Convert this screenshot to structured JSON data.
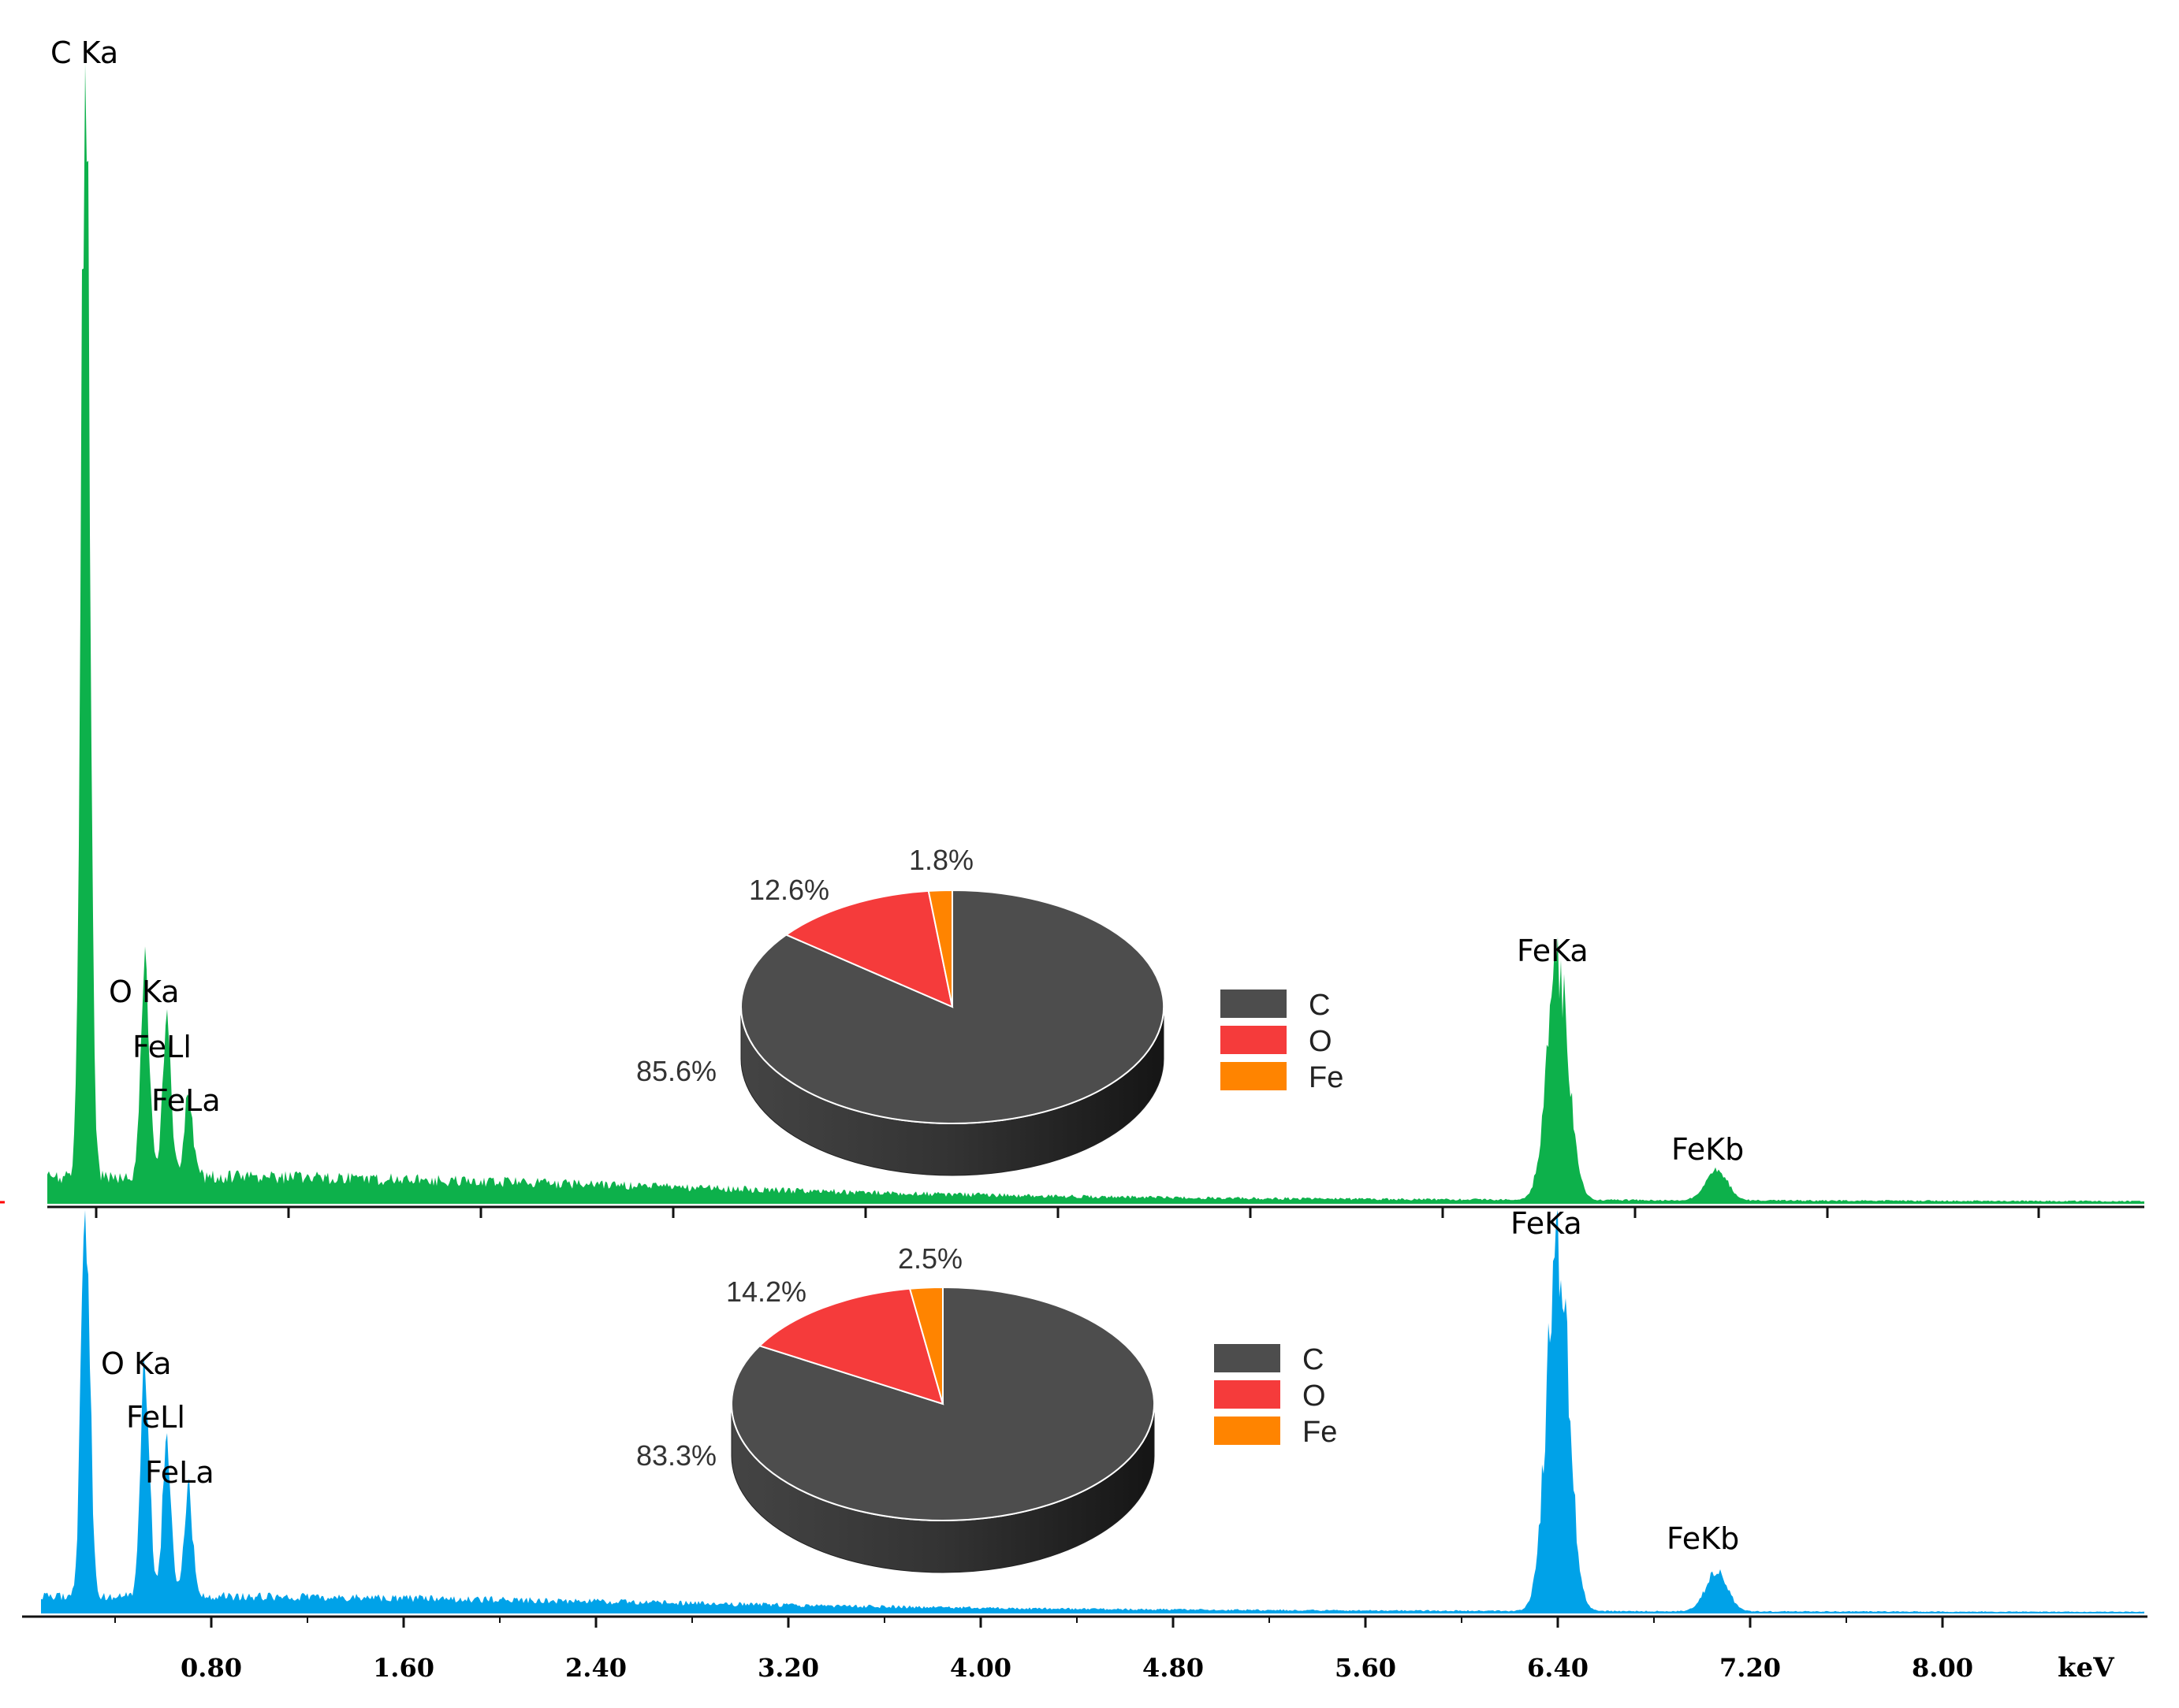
{
  "colors": {
    "top_spectrum": "#0db14b",
    "bottom_spectrum": "#00a2e8",
    "C": "#4d4d4d",
    "O": "#f53b3b",
    "Fe": "#ff8400"
  },
  "chart_data": [
    {
      "type": "area",
      "panel": "top",
      "x_unit": "keV",
      "xlim": [
        0.0,
        8.8
      ],
      "peaks": [
        {
          "label": "C Ka",
          "x": 0.277,
          "y": 1.0
        },
        {
          "label": "O Ka",
          "x": 0.525,
          "y": 0.185
        },
        {
          "label": "FeLl",
          "x": 0.615,
          "y": 0.13
        },
        {
          "label": "FeLa",
          "x": 0.705,
          "y": 0.065
        },
        {
          "label": "FeKa",
          "x": 6.4,
          "y": 0.205
        },
        {
          "label": "FeKb",
          "x": 7.06,
          "y": 0.027
        }
      ]
    },
    {
      "type": "pie",
      "panel": "top",
      "slices": [
        {
          "label": "C",
          "value": 85.6,
          "display": "85.6%"
        },
        {
          "label": "O",
          "value": 12.6,
          "display": "12.6%"
        },
        {
          "label": "Fe",
          "value": 1.8,
          "display": "1.8%"
        }
      ],
      "legend": [
        "C",
        "O",
        "Fe"
      ]
    },
    {
      "type": "area",
      "panel": "bottom",
      "x_unit": "keV",
      "xlim": [
        0.0,
        8.8
      ],
      "xticks": [
        "0.80",
        "1.60",
        "2.40",
        "3.20",
        "4.00",
        "4.80",
        "5.60",
        "6.40",
        "7.20",
        "8.00"
      ],
      "xlabel": "keV",
      "peaks": [
        {
          "label": "",
          "x": 0.277,
          "y": 1.0
        },
        {
          "label": "O Ka",
          "x": 0.525,
          "y": 0.565
        },
        {
          "label": "FeLl",
          "x": 0.615,
          "y": 0.39
        },
        {
          "label": "FeLa",
          "x": 0.705,
          "y": 0.26
        },
        {
          "label": "FeKa",
          "x": 6.4,
          "y": 0.92
        },
        {
          "label": "FeKb",
          "x": 7.06,
          "y": 0.1
        }
      ]
    },
    {
      "type": "pie",
      "panel": "bottom",
      "slices": [
        {
          "label": "C",
          "value": 83.3,
          "display": "83.3%"
        },
        {
          "label": "O",
          "value": 14.2,
          "display": "14.2%"
        },
        {
          "label": "Fe",
          "value": 2.5,
          "display": "2.5%"
        }
      ],
      "legend": [
        "C",
        "O",
        "Fe"
      ]
    }
  ]
}
